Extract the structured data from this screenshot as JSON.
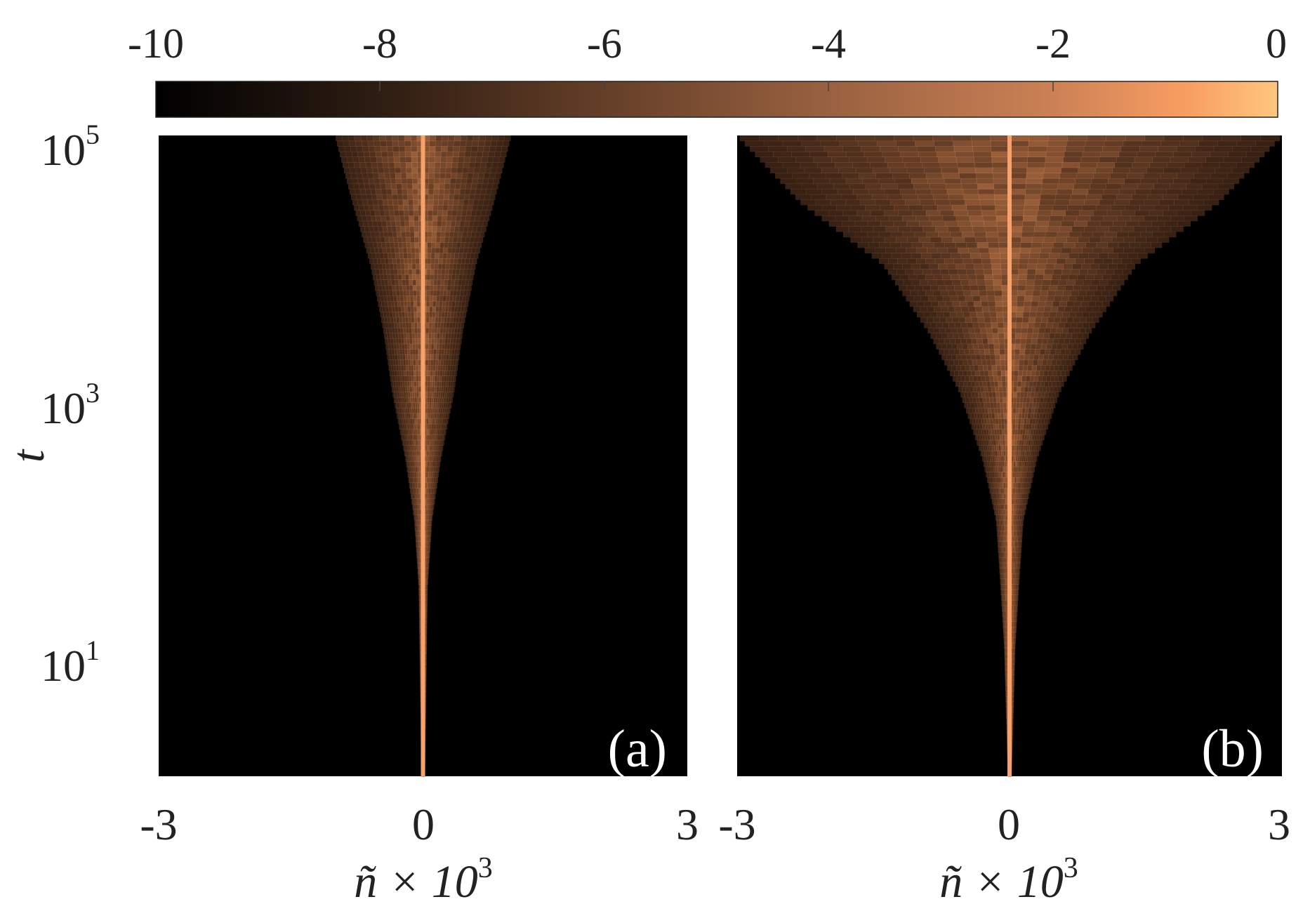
{
  "chart_data": {
    "type": "heatmap",
    "colorbar": {
      "ticks": [
        "-10",
        "-8",
        "-6",
        "-4",
        "-2",
        "0"
      ],
      "range": [
        -10,
        0
      ],
      "colormap": "copper",
      "placement": "top"
    },
    "y_axis": {
      "label": "t",
      "scale": "log",
      "range": [
        1,
        100000
      ],
      "ticks": [
        {
          "value": 100000,
          "base": "10",
          "exp": "5"
        },
        {
          "value": 1000,
          "base": "10",
          "exp": "3"
        },
        {
          "value": 10,
          "base": "10",
          "exp": "1"
        }
      ]
    },
    "panels": [
      {
        "id": "a",
        "label": "(a)",
        "x_range": [
          -3,
          3
        ],
        "x_ticks": [
          "-3",
          "0",
          "3"
        ],
        "x_label_base": "ñ × 10",
        "x_label_exp": "3",
        "spread_profile": [
          [
            1,
            0.02
          ],
          [
            30,
            0.05
          ],
          [
            100,
            0.1
          ],
          [
            300,
            0.2
          ],
          [
            1000,
            0.35
          ],
          [
            3000,
            0.45
          ],
          [
            10000,
            0.6
          ],
          [
            30000,
            0.8
          ],
          [
            100000,
            1.0
          ]
        ]
      },
      {
        "id": "b",
        "label": "(b)",
        "x_range": [
          -3,
          3
        ],
        "x_ticks": [
          "-3",
          "0",
          "3"
        ],
        "x_label_base": "ñ × 10",
        "x_label_exp": "3",
        "spread_profile": [
          [
            1,
            0.02
          ],
          [
            10,
            0.06
          ],
          [
            30,
            0.1
          ],
          [
            100,
            0.15
          ],
          [
            300,
            0.3
          ],
          [
            1000,
            0.55
          ],
          [
            3000,
            0.9
          ],
          [
            10000,
            1.4
          ],
          [
            30000,
            2.3
          ],
          [
            100000,
            3.0
          ]
        ]
      }
    ],
    "grid": false
  }
}
